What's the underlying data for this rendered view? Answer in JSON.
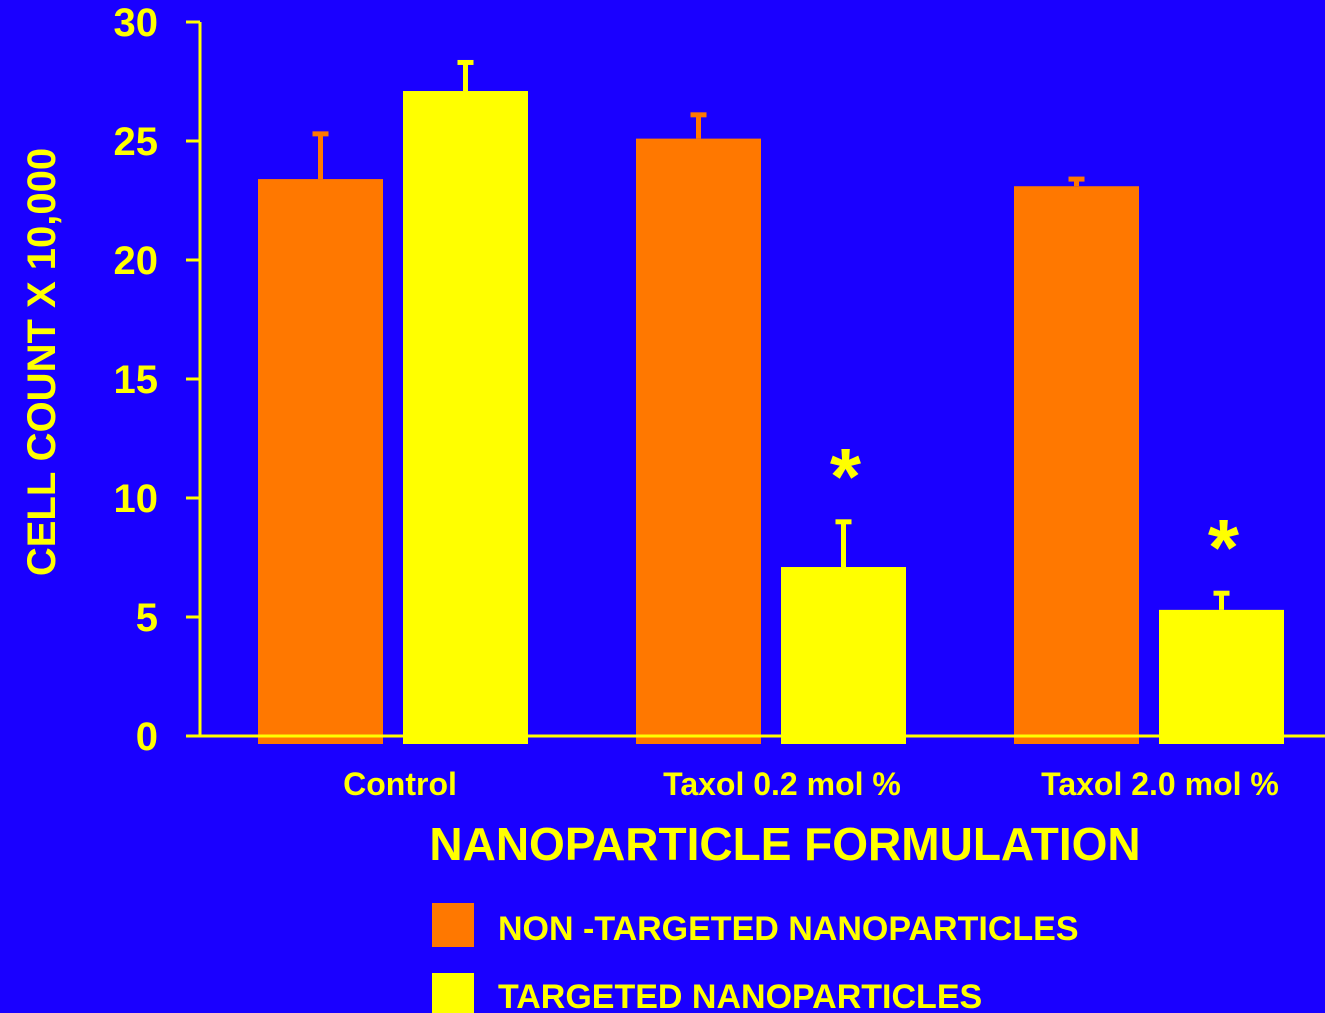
{
  "chart_data": {
    "type": "bar",
    "title": "",
    "xlabel": "NANOPARTICLE FORMULATION",
    "ylabel": "CELL COUNT X 10,000",
    "ylim": [
      0,
      30
    ],
    "yticks": [
      0,
      5,
      10,
      15,
      20,
      25,
      30
    ],
    "categories": [
      "Control",
      "Taxol 0.2 mol %",
      "Taxol 2.0 mol %"
    ],
    "series": [
      {
        "name": "NON -TARGETED NANOPARTICLES",
        "color": "#ff7800",
        "values": [
          23.4,
          25.1,
          23.1
        ],
        "errors": [
          1.9,
          1.0,
          0.3
        ]
      },
      {
        "name": "TARGETED NANOPARTICLES",
        "color": "#ffff00",
        "values": [
          27.1,
          7.1,
          5.3
        ],
        "errors": [
          1.2,
          1.9,
          0.7
        ]
      }
    ],
    "annotations": [
      {
        "text": "*",
        "category": 1,
        "series": 1
      },
      {
        "text": "*",
        "category": 2,
        "series": 1
      }
    ],
    "grid": false,
    "legend_position": "bottom"
  },
  "colors": {
    "background": "#1a00ff",
    "axis": "#ffff00",
    "text": "#ffff00"
  }
}
